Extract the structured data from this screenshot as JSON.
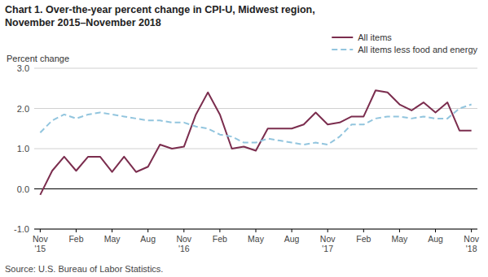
{
  "chart_data": {
    "type": "line",
    "title": "Chart 1. Over-the-year percent change in CPI-U, Midwest region,",
    "subtitle": "November 2015–November 2018",
    "y_label": "Percent change",
    "source": "Source: U.S. Bureau of Labor Statistics.",
    "categories": [
      "Nov\n'15",
      null,
      null,
      "Feb",
      null,
      null,
      "May",
      null,
      null,
      "Aug",
      null,
      null,
      "Nov\n'16",
      null,
      null,
      "Feb",
      null,
      null,
      "May",
      null,
      null,
      "Aug",
      null,
      null,
      "Nov\n'17",
      null,
      null,
      "Feb",
      null,
      null,
      "May",
      null,
      null,
      "Aug",
      null,
      null,
      "Nov\n'18"
    ],
    "series": [
      {
        "name": "All items",
        "color": "#7B2D4E",
        "line_style": "solid",
        "values": [
          -0.15,
          0.45,
          0.8,
          0.45,
          0.8,
          0.8,
          0.42,
          0.8,
          0.42,
          0.55,
          1.1,
          1.0,
          1.05,
          1.85,
          2.4,
          1.85,
          1.0,
          1.05,
          0.95,
          1.5,
          1.5,
          1.5,
          1.6,
          1.9,
          1.6,
          1.65,
          1.8,
          1.8,
          2.45,
          2.4,
          2.1,
          1.95,
          2.15,
          1.9,
          2.15,
          1.45,
          1.45
        ]
      },
      {
        "name": "All items less food and energy",
        "color": "#92C5DE",
        "line_style": "dashed",
        "values": [
          1.4,
          1.7,
          1.85,
          1.75,
          1.85,
          1.9,
          1.85,
          1.8,
          1.75,
          1.7,
          1.7,
          1.65,
          1.65,
          1.55,
          1.5,
          1.35,
          1.3,
          1.15,
          1.15,
          1.25,
          1.2,
          1.15,
          1.1,
          1.15,
          1.1,
          1.3,
          1.6,
          1.6,
          1.75,
          1.8,
          1.8,
          1.75,
          1.8,
          1.75,
          1.75,
          2.0,
          2.1
        ]
      }
    ],
    "ylim": [
      -1.0,
      3.0
    ],
    "yticks": [
      {
        "value": -1.0,
        "label": "-1.0"
      },
      {
        "value": 0.0,
        "label": "0.0"
      },
      {
        "value": 1.0,
        "label": "1.0"
      },
      {
        "value": 2.0,
        "label": "2.0"
      },
      {
        "value": 3.0,
        "label": "3.0"
      }
    ],
    "grid": true,
    "legend": "upper right"
  }
}
